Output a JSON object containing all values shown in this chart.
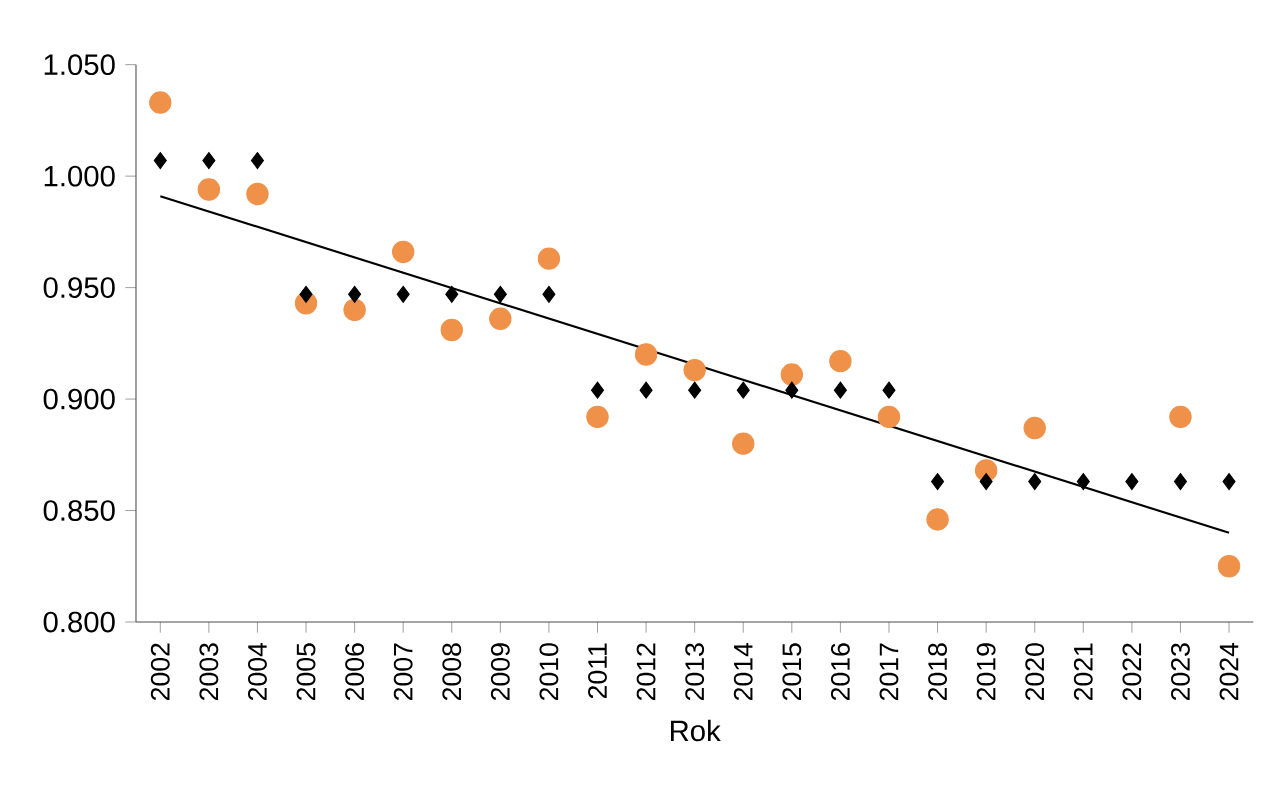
{
  "chart_data": {
    "type": "scatter",
    "xlabel": "Rok",
    "x": [
      2002,
      2003,
      2004,
      2005,
      2006,
      2007,
      2008,
      2009,
      2010,
      2011,
      2012,
      2013,
      2014,
      2015,
      2016,
      2017,
      2018,
      2019,
      2020,
      2021,
      2022,
      2023,
      2024
    ],
    "xlim": [
      2001.5,
      2024.5
    ],
    "xticks": [
      2002,
      2003,
      2004,
      2005,
      2006,
      2007,
      2008,
      2009,
      2010,
      2011,
      2012,
      2013,
      2014,
      2015,
      2016,
      2017,
      2018,
      2019,
      2020,
      2021,
      2022,
      2023,
      2024
    ],
    "ylim": [
      0.8,
      1.05
    ],
    "yticks": [
      {
        "value": 0.8,
        "label": "0.800"
      },
      {
        "value": 0.85,
        "label": "0.850"
      },
      {
        "value": 0.9,
        "label": "0.900"
      },
      {
        "value": 0.95,
        "label": "0.950"
      },
      {
        "value": 1.0,
        "label": "1.000"
      },
      {
        "value": 1.05,
        "label": "1.050"
      }
    ],
    "grid": false,
    "series": [
      {
        "marker": "circle",
        "color": "#f0914a",
        "values": [
          1.033,
          0.994,
          0.992,
          0.943,
          0.94,
          0.966,
          0.931,
          0.936,
          0.963,
          0.892,
          0.92,
          0.913,
          0.88,
          0.911,
          0.917,
          0.892,
          0.846,
          0.868,
          0.887,
          null,
          null,
          0.892,
          0.825
        ]
      },
      {
        "marker": "diamond",
        "color": "#000000",
        "values": [
          1.007,
          1.007,
          1.007,
          0.947,
          0.947,
          0.947,
          0.947,
          0.947,
          0.947,
          0.904,
          0.904,
          0.904,
          0.904,
          0.904,
          0.904,
          0.904,
          0.863,
          0.863,
          0.863,
          0.863,
          0.863,
          0.863,
          0.863
        ]
      },
      {
        "type": "line",
        "marker": "none",
        "line_style": "solid",
        "color": "#000000",
        "x": [
          2002,
          2024
        ],
        "values": [
          0.991,
          0.84
        ]
      }
    ]
  }
}
